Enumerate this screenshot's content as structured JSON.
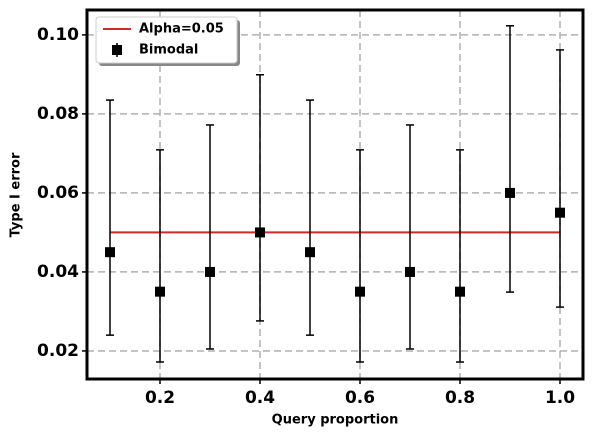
{
  "chart_data": {
    "type": "errorbar",
    "xlabel": "Query proportion",
    "ylabel": "Type I error",
    "xlim": [
      0.054,
      1.046
    ],
    "ylim": [
      0.0129,
      0.1063
    ],
    "xticks": [
      0.2,
      0.4,
      0.6,
      0.8,
      {
        "value": 1.0,
        "label": "1.0"
      }
    ],
    "yticks": [
      0.02,
      0.04,
      0.06,
      0.08,
      {
        "value": 0.1,
        "label": "0.10"
      }
    ],
    "grid": true,
    "legend": "upper left",
    "series": [
      {
        "name": "Alpha=0.05",
        "type": "line",
        "color": "#d62728",
        "x": [
          0.1,
          1.0
        ],
        "values": [
          0.05,
          0.05
        ]
      },
      {
        "name": "Bimodal",
        "type": "errorbar",
        "color": "#000000",
        "x": [
          0.1,
          0.2,
          0.3,
          0.4,
          0.5,
          0.6,
          0.7,
          0.8,
          0.9,
          1.0
        ],
        "values": [
          0.045,
          0.035,
          0.04,
          0.05,
          0.045,
          0.035,
          0.04,
          0.035,
          0.06,
          0.055
        ],
        "err_lower": [
          0.021,
          0.0178,
          0.0195,
          0.0224,
          0.021,
          0.0178,
          0.0195,
          0.0178,
          0.0251,
          0.0239
        ],
        "err_upper": [
          0.0385,
          0.0359,
          0.0372,
          0.0399,
          0.0385,
          0.0359,
          0.0372,
          0.0359,
          0.0423,
          0.0412
        ]
      }
    ]
  }
}
